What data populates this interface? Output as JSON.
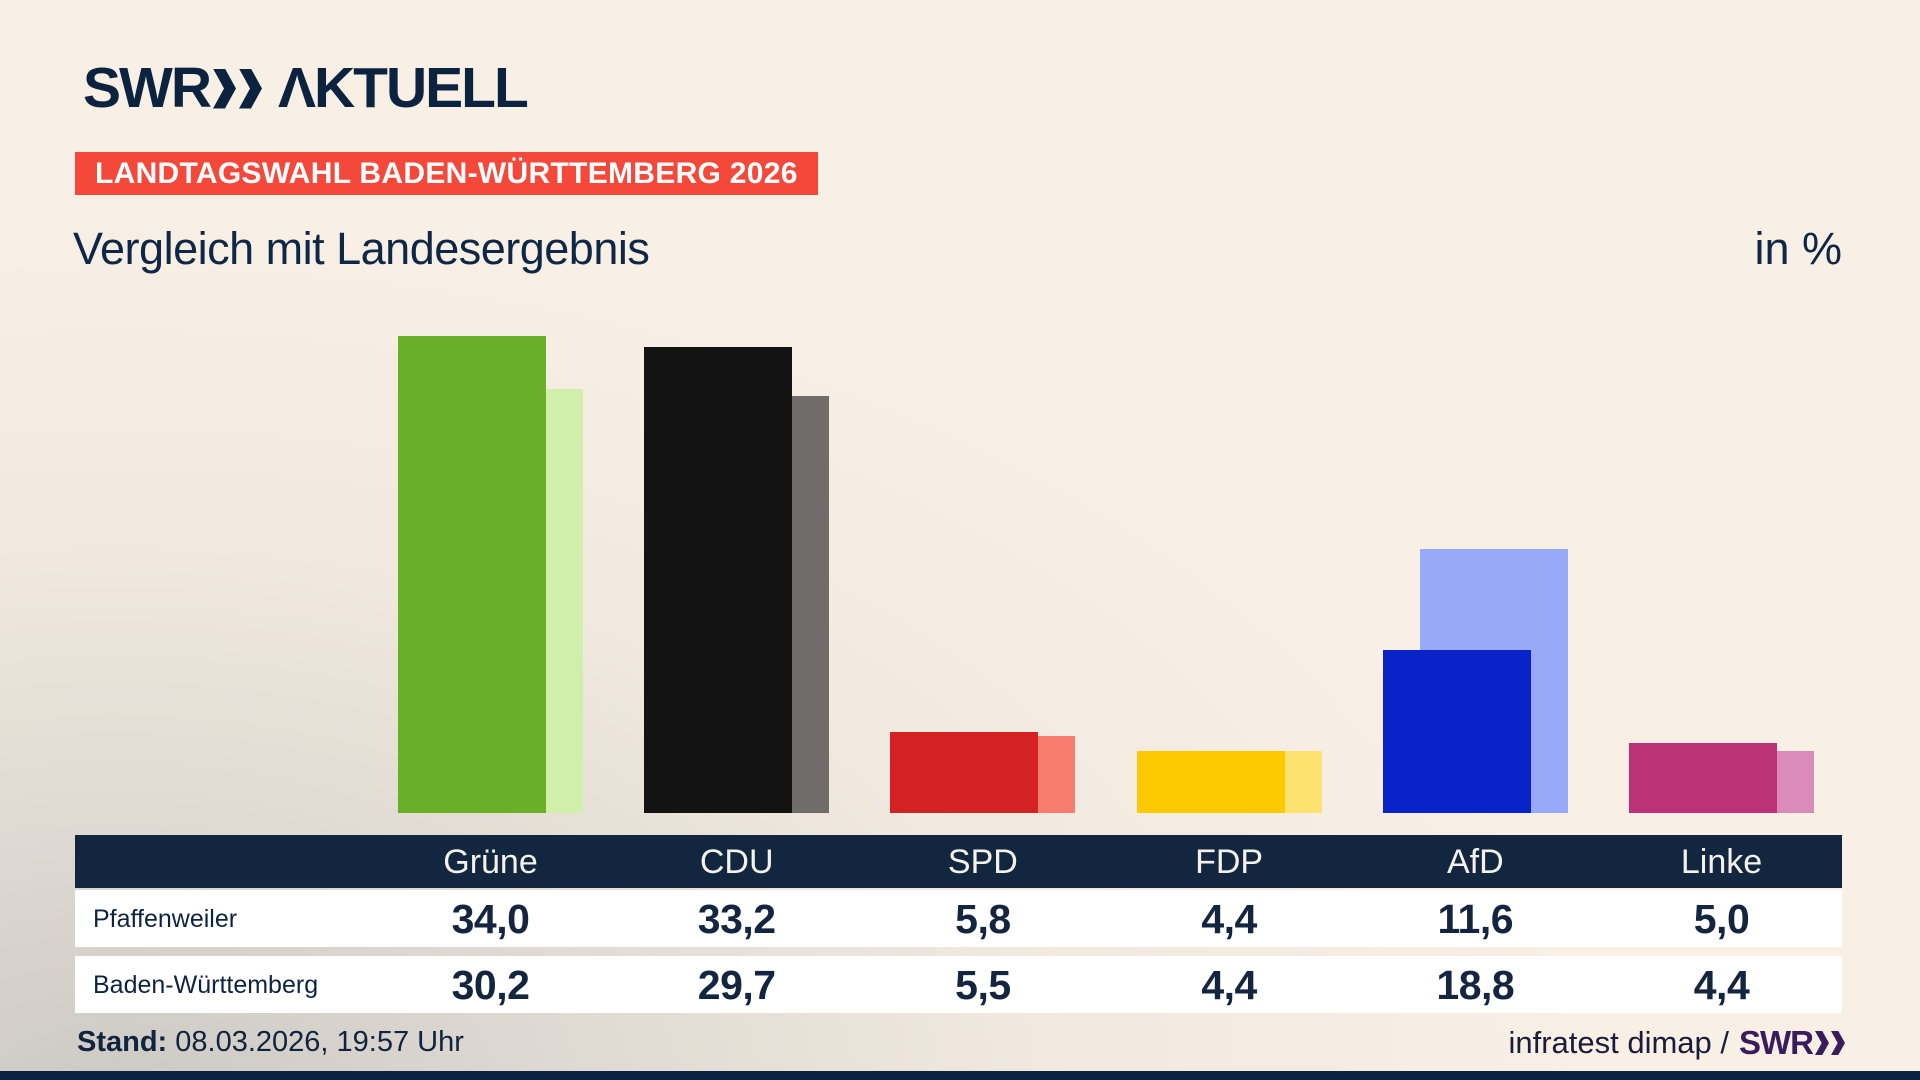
{
  "brand": {
    "logo_word": "SWR",
    "logo_suffix": "ΛKTUELL"
  },
  "banner": {
    "text": "LANDTAGSWAHL BADEN-WÜRTTEMBERG 2026",
    "bg": "#f4483a"
  },
  "title": "Vergleich mit Landesergebnis",
  "unit_label": "in %",
  "chart_data": {
    "type": "bar",
    "categories": [
      "Grüne",
      "CDU",
      "SPD",
      "FDP",
      "AfD",
      "Linke"
    ],
    "series": [
      {
        "name": "Pfaffenweiler",
        "values": [
          34.0,
          33.2,
          5.8,
          4.4,
          11.6,
          5.0
        ]
      },
      {
        "name": "Baden-Württemberg",
        "values": [
          30.2,
          29.7,
          5.5,
          4.4,
          18.8,
          4.4
        ]
      }
    ],
    "title": "Vergleich mit Landesergebnis",
    "xlabel": "",
    "ylabel": "in %",
    "ylim": [
      0,
      34.5
    ],
    "grid": false,
    "legend_position": "table-rows-below",
    "colors": {
      "main": [
        "#69af28",
        "#131313",
        "#d32221",
        "#fdca02",
        "#0a23c9",
        "#bd3277"
      ],
      "state": [
        "#cfefaa",
        "#706c6a",
        "#f87c70",
        "#fde272",
        "#97a9f8",
        "#d98bba"
      ]
    }
  },
  "table": {
    "rows": [
      {
        "label": "Pfaffenweiler",
        "values": [
          "34,0",
          "33,2",
          "5,8",
          "4,4",
          "11,6",
          "5,0"
        ]
      },
      {
        "label": "Baden-Württemberg",
        "values": [
          "30,2",
          "29,7",
          "5,5",
          "4,4",
          "18,8",
          "4,4"
        ]
      }
    ]
  },
  "footer": {
    "stand_label": "Stand:",
    "stand_value": " 08.03.2026, 19:57 Uhr",
    "source_text": "infratest dimap /",
    "source_brand": "SWR"
  }
}
